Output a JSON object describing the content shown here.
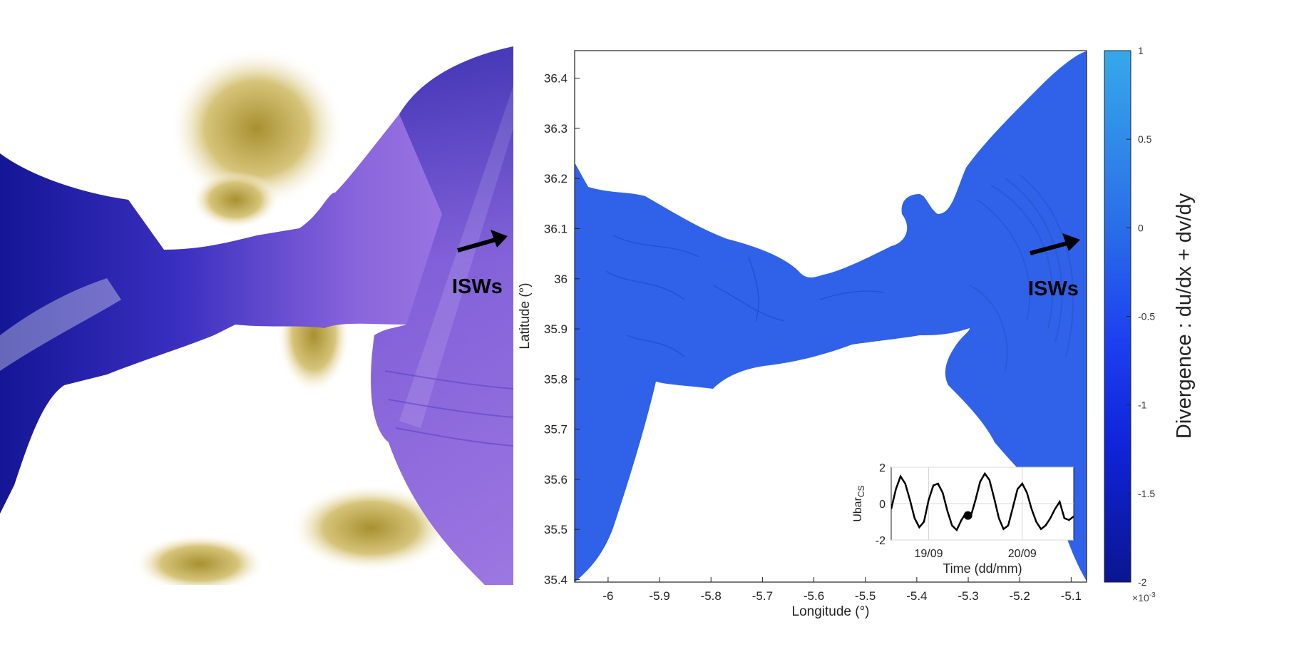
{
  "colors": {
    "background": "#ffffff",
    "ocean_satellite_dark": "#1c1aa0",
    "ocean_satellite_light": "#9a72e0",
    "land_satellite": "#b8a23c",
    "ocean_model": "#2f62e8",
    "land_model": "#ffffff",
    "arrow": "#000000",
    "colorbar_top": "#36a8ea",
    "colorbar_bottom": "#0a1690"
  },
  "satellite_panel": {
    "annotation": "ISWs"
  },
  "chart_data": [
    {
      "type": "heatmap",
      "name": "divergence-map",
      "title": "",
      "xlabel": "Longitude (°)",
      "ylabel": "Latitude (°)",
      "xlim": [
        -6.065,
        -5.07
      ],
      "ylim": [
        35.395,
        36.455
      ],
      "xticks": [
        -6,
        -5.9,
        -5.8,
        -5.7,
        -5.6,
        -5.5,
        -5.4,
        -5.3,
        -5.2,
        -5.1
      ],
      "xtick_labels": [
        "-6",
        "-5.9",
        "-5.8",
        "-5.7",
        "-5.6",
        "-5.5",
        "-5.4",
        "-5.3",
        "-5.2",
        "-5.1"
      ],
      "yticks": [
        35.4,
        35.5,
        35.6,
        35.7,
        35.8,
        35.9,
        36.0,
        36.1,
        36.2,
        36.3,
        36.4
      ],
      "ytick_labels": [
        "35.4",
        "35.5",
        "35.6",
        "35.7",
        "35.8",
        "35.9",
        "36",
        "36.1",
        "36.2",
        "36.3",
        "36.4"
      ],
      "annotation": "ISWs",
      "colorbar": {
        "label": "Divergence : du/dx + dv/dy",
        "range": [
          -2,
          1
        ],
        "ticks": [
          1,
          0.5,
          0,
          -0.5,
          -1,
          -1.5,
          -2
        ],
        "tick_labels": [
          "1",
          "0.5",
          "0",
          "-0.5",
          "-1",
          "-1.5",
          "-2"
        ],
        "scale_label": "×10",
        "scale_exponent": "-3"
      }
    },
    {
      "type": "line",
      "name": "ubar-inset",
      "xlabel": "Time (dd/mm)",
      "ylabel_main": "Ubar",
      "ylabel_sub": "CS",
      "xlim": [
        18.6,
        20.55
      ],
      "ylim": [
        -2,
        2
      ],
      "xticks": [
        19,
        20
      ],
      "xtick_labels": [
        "19/09",
        "20/09"
      ],
      "yticks": [
        -2,
        0,
        2
      ],
      "ytick_labels": [
        "-2",
        "0",
        "2"
      ],
      "grid": true,
      "series": [
        {
          "name": "Ubar_CS",
          "x": [
            18.6,
            18.65,
            18.7,
            18.75,
            18.8,
            18.85,
            18.9,
            18.95,
            19.0,
            19.05,
            19.1,
            19.15,
            19.2,
            19.25,
            19.3,
            19.35,
            19.4,
            19.45,
            19.5,
            19.55,
            19.6,
            19.65,
            19.7,
            19.75,
            19.8,
            19.85,
            19.9,
            19.95,
            20.0,
            20.05,
            20.1,
            20.15,
            20.2,
            20.25,
            20.3,
            20.35,
            20.4,
            20.45,
            20.5,
            20.55
          ],
          "values": [
            -0.3,
            0.8,
            1.5,
            1.1,
            0.2,
            -0.8,
            -1.3,
            -1.0,
            0.2,
            1.0,
            1.1,
            0.6,
            -0.4,
            -1.2,
            -1.45,
            -0.9,
            -0.5,
            -0.7,
            0.2,
            1.2,
            1.65,
            1.3,
            0.3,
            -0.8,
            -1.4,
            -1.2,
            -0.2,
            0.8,
            1.1,
            0.6,
            -0.3,
            -1.0,
            -1.4,
            -1.2,
            -0.8,
            -0.3,
            0.1,
            -0.8,
            -0.9,
            -0.7
          ]
        }
      ],
      "marker": {
        "x": 19.42,
        "y": -0.65
      }
    }
  ]
}
